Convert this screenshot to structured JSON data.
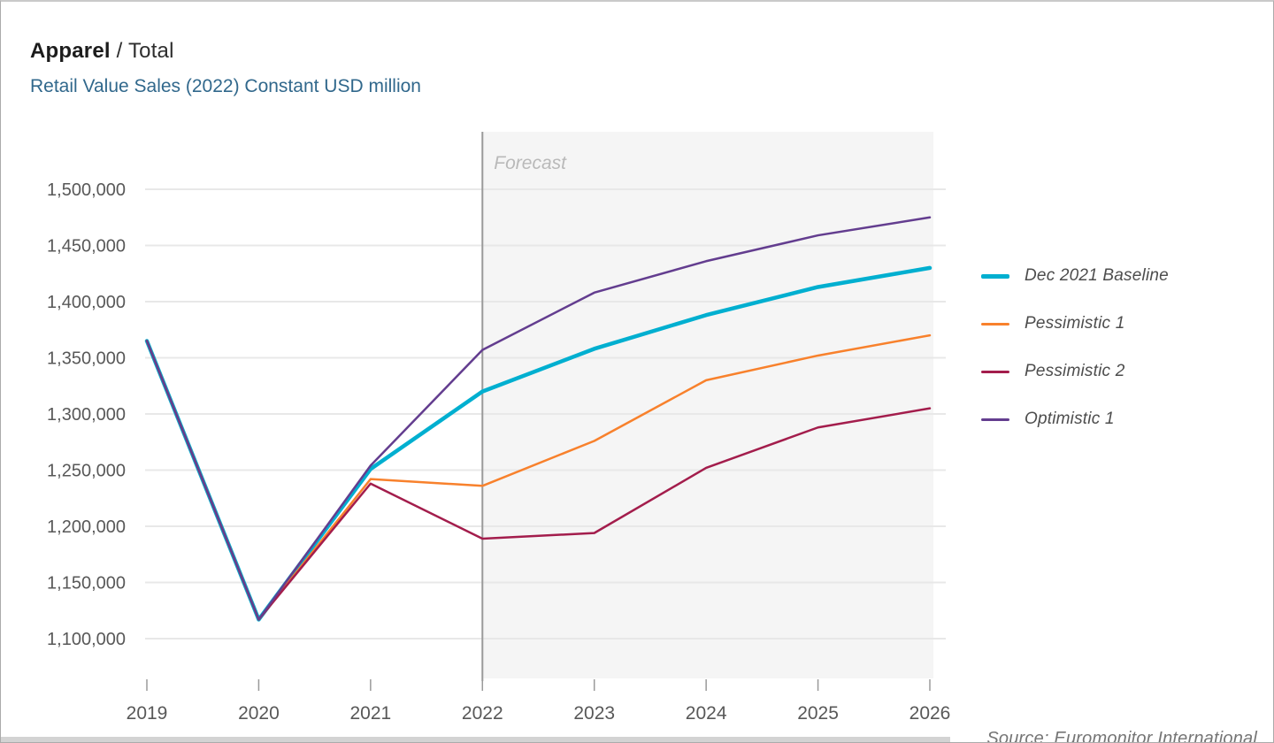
{
  "header": {
    "title_primary": "Apparel",
    "title_secondary": "/ Total",
    "subtitle": "Retail Value Sales (2022) Constant USD million"
  },
  "chart_data": {
    "type": "line",
    "x": [
      2019,
      2020,
      2021,
      2022,
      2023,
      2024,
      2025,
      2026
    ],
    "x_labels": [
      "2019",
      "2020",
      "2021",
      "2022",
      "2023",
      "2024",
      "2025",
      "2026"
    ],
    "ylim": [
      1100000,
      1500000
    ],
    "yticks": [
      {
        "value": 1500000,
        "label": "1,500,000"
      },
      {
        "value": 1450000,
        "label": "1,450,000"
      },
      {
        "value": 1400000,
        "label": "1,400,000"
      },
      {
        "value": 1350000,
        "label": "1,350,000"
      },
      {
        "value": 1300000,
        "label": "1,300,000"
      },
      {
        "value": 1250000,
        "label": "1,250,000"
      },
      {
        "value": 1200000,
        "label": "1,200,000"
      },
      {
        "value": 1150000,
        "label": "1,150,000"
      },
      {
        "value": 1100000,
        "label": "1,100,000"
      }
    ],
    "grid": "horizontal",
    "legend_position": "right",
    "forecast": {
      "label": "Forecast",
      "start_year": 2022,
      "band_color": "#f5f5f5",
      "line_color": "#9a9a9a",
      "label_color": "#b9b9b9"
    },
    "series": [
      {
        "name": "Dec 2021 Baseline",
        "color": "#00AFD0",
        "width": 4.5,
        "values": [
          1365000,
          1117000,
          1251000,
          1320000,
          1358000,
          1388000,
          1413000,
          1430000
        ]
      },
      {
        "name": "Pessimistic 1",
        "color": "#F8812C",
        "width": 2.5,
        "values": [
          1365000,
          1117000,
          1242000,
          1236000,
          1276000,
          1330000,
          1352000,
          1370000
        ]
      },
      {
        "name": "Pessimistic 2",
        "color": "#A31D4C",
        "width": 2.5,
        "values": [
          1365000,
          1117000,
          1238000,
          1189000,
          1194000,
          1252000,
          1288000,
          1305000
        ]
      },
      {
        "name": "Optimistic 1",
        "color": "#633D8F",
        "width": 2.5,
        "values": [
          1365000,
          1117000,
          1254000,
          1357000,
          1408000,
          1436000,
          1459000,
          1475000
        ]
      }
    ],
    "gridline_color": "#e8e8e8",
    "axis_label_color": "#585858"
  },
  "source": {
    "text": "Source: Euromonitor International"
  }
}
